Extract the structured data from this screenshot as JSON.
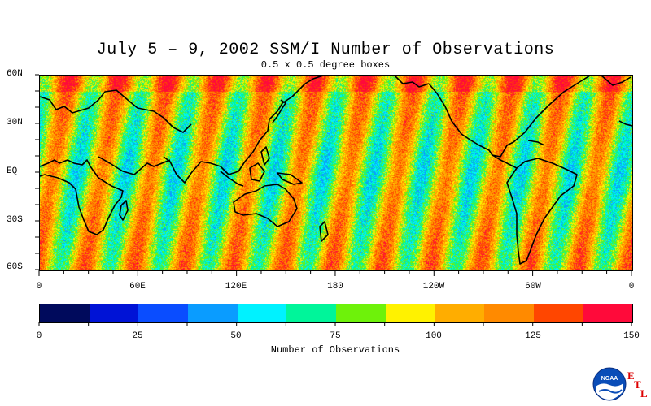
{
  "title": "July 5 – 9, 2002 SSM/I Number of Observations",
  "subtitle": "0.5 x 0.5 degree boxes",
  "lat_labels": [
    "60N",
    "30N",
    "EQ",
    "30S",
    "60S"
  ],
  "lon_labels": [
    "0",
    "60E",
    "120E",
    "180",
    "120W",
    "60W",
    "0"
  ],
  "colorbar": {
    "ticks": [
      "0",
      "25",
      "50",
      "75",
      "100",
      "125",
      "150"
    ],
    "label": "Number of Observations",
    "colors": [
      "#000a5c",
      "#0013d6",
      "#0a4dff",
      "#0a9cff",
      "#00f2ff",
      "#00f59a",
      "#6ef20a",
      "#fff200",
      "#ffad00",
      "#ff8a00",
      "#ff4600",
      "#ff0a3a"
    ]
  },
  "logo": {
    "text": "NOAA",
    "letters": [
      "E",
      "T",
      "L"
    ]
  }
}
